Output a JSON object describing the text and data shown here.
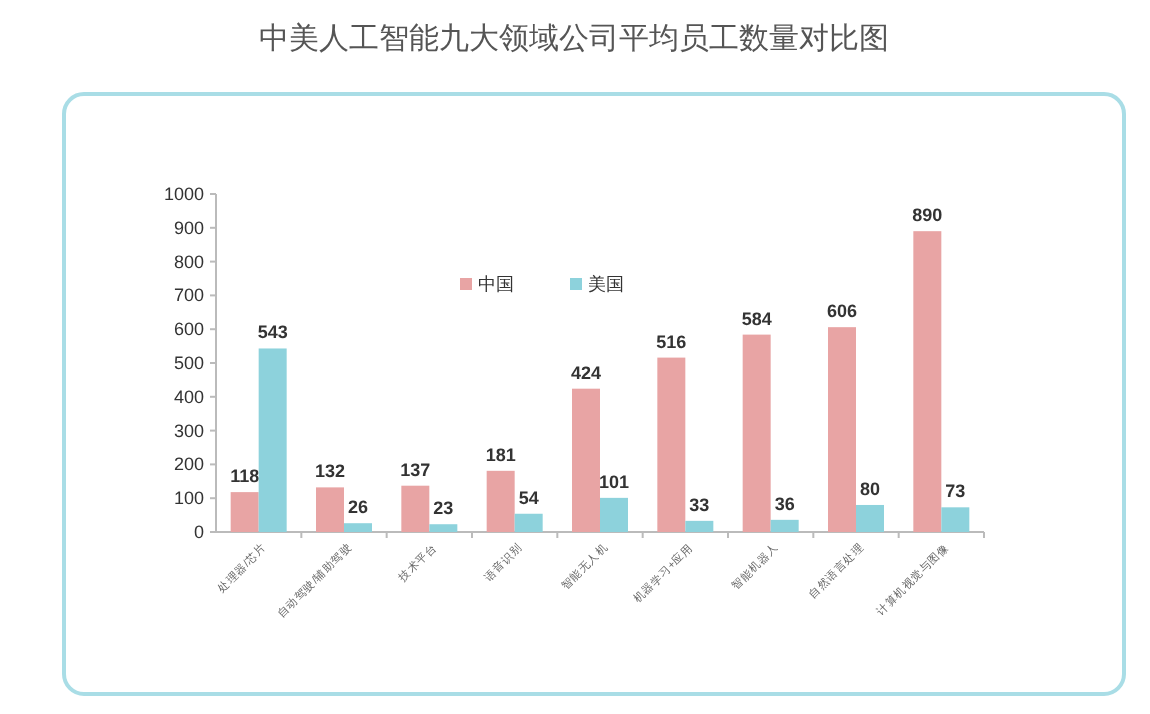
{
  "chart_data": {
    "type": "bar",
    "title": "中美人工智能九大领域公司平均员工数量对比图",
    "categories": [
      "处理器/芯片",
      "自动驾驶/辅助驾驶",
      "技术平台",
      "语音识别",
      "智能无人机",
      "机器学习+应用",
      "智能机器人",
      "自然语言处理",
      "计算机视觉与图像"
    ],
    "series": [
      {
        "name": "中国",
        "color": "#e8a4a4",
        "values": [
          118,
          132,
          137,
          181,
          424,
          516,
          584,
          606,
          890
        ]
      },
      {
        "name": "美国",
        "color": "#8dd2dc",
        "values": [
          543,
          26,
          23,
          54,
          101,
          33,
          36,
          80,
          73
        ]
      }
    ],
    "ylim": [
      0,
      1000
    ],
    "yticks": [
      0,
      100,
      200,
      300,
      400,
      500,
      600,
      700,
      800,
      900,
      1000
    ],
    "data_labels": true,
    "legend": "top",
    "grid": false
  }
}
